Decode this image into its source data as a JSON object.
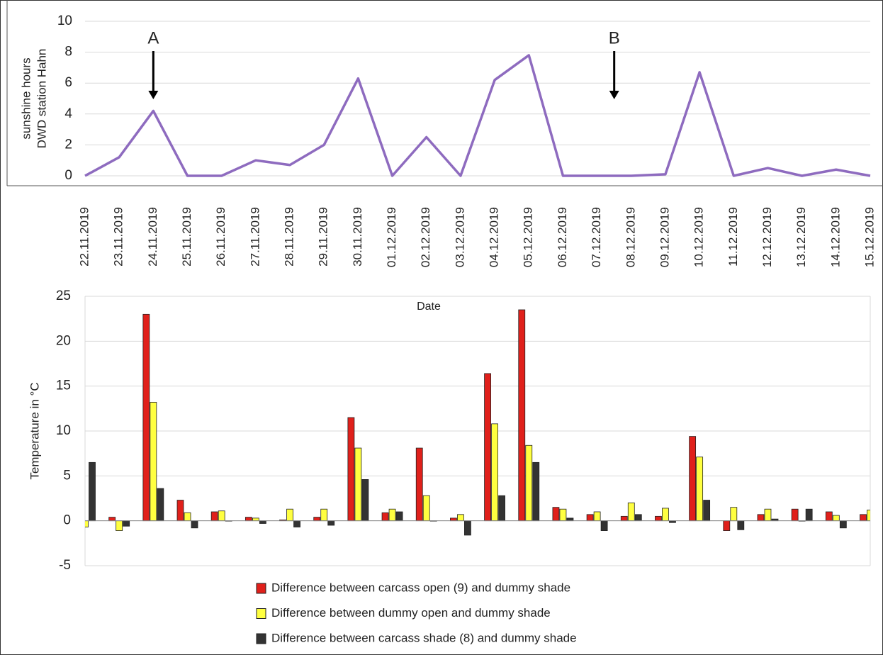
{
  "chart_data": [
    {
      "type": "line",
      "ylabel": [
        "sunshine hours",
        "DWD station Hahn"
      ],
      "categories": [
        "22.11.2019",
        "23.11.2019",
        "24.11.2019",
        "25.11.2019",
        "26.11.2019",
        "27.11.2019",
        "28.11.2019",
        "29.11.2019",
        "30.11.2019",
        "01.12.2019",
        "02.12.2019",
        "03.12.2019",
        "04.12.2019",
        "05.12.2019",
        "06.12.2019",
        "07.12.2019",
        "08.12.2019",
        "09.12.2019",
        "10.12.2019",
        "11.12.2019",
        "12.12.2019",
        "13.12.2019",
        "14.12.2019",
        "15.12.2019"
      ],
      "values": [
        0,
        1.2,
        4.2,
        0,
        0,
        1.0,
        0.7,
        2.0,
        6.3,
        0,
        2.5,
        0,
        6.2,
        7.8,
        0,
        0,
        0,
        0.1,
        6.7,
        0,
        0.5,
        0,
        0.4,
        0
      ],
      "color": "#8e6bbf",
      "ylim": [
        0,
        10
      ],
      "yticks": [
        0,
        2,
        4,
        6,
        8,
        10
      ],
      "grid": true,
      "annotations": [
        "A",
        "B"
      ]
    },
    {
      "type": "bar",
      "xlabel": "Date",
      "ylabel": "Temperature in °C",
      "ylim": [
        -5,
        25
      ],
      "yticks": [
        -5,
        0,
        5,
        10,
        15,
        20,
        25
      ],
      "grid": true,
      "series": [
        {
          "name": "Difference between carcass open (9) and dummy shade",
          "color": "#e0201b",
          "values": [
            null,
            0.4,
            23,
            2.3,
            1.0,
            0.4,
            0.1,
            0.4,
            11.5,
            0.9,
            8.1,
            0.3,
            16.4,
            23.5,
            1.5,
            0.7,
            0.5,
            0.5,
            9.4,
            -1.1,
            0.7,
            1.3,
            1.0,
            0.7
          ]
        },
        {
          "name": "Difference between dummy open and dummy shade",
          "color": "#ffff40",
          "values": [
            -0.7,
            -1.1,
            13.2,
            0.9,
            1.1,
            0.3,
            1.3,
            1.3,
            8.1,
            1.3,
            2.8,
            0.7,
            10.8,
            8.4,
            1.3,
            1.0,
            2.0,
            1.4,
            7.1,
            1.5,
            1.3,
            0,
            0.6,
            1.2
          ]
        },
        {
          "name": "Difference between carcass shade (8) and dummy shade",
          "color": "#333333",
          "values": [
            6.5,
            -0.6,
            3.6,
            -0.8,
            0,
            -0.3,
            -0.7,
            -0.5,
            4.6,
            1.0,
            0,
            -1.6,
            2.8,
            6.5,
            0.3,
            -1.1,
            0.7,
            -0.2,
            2.3,
            -1.0,
            0.2,
            1.3,
            -0.8,
            null
          ]
        }
      ]
    }
  ]
}
